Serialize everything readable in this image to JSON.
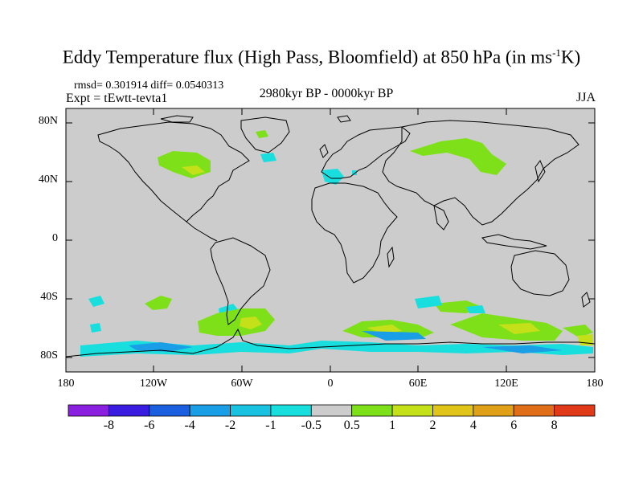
{
  "title_main": "Eddy Temperature flux (High Pass, Bloomfield) at 850 hPa (in ms",
  "title_sup": "-1",
  "title_end": "K)",
  "stats": "rmsd= 0.301914 diff= 0.0540313",
  "experiment": "Expt = tEwtt-tevta1",
  "period": "2980kyr BP - 0000kyr BP",
  "season": "JJA",
  "axes": {
    "y_labels": [
      "80N",
      "40N",
      "0",
      "40S",
      "80S"
    ],
    "x_labels": [
      "180",
      "120W",
      "60W",
      "0",
      "60E",
      "120E",
      "180"
    ]
  },
  "colorbar": {
    "labels": [
      "-8",
      "-6",
      "-4",
      "-2",
      "-1",
      "-0.5",
      "0.5",
      "1",
      "2",
      "4",
      "6",
      "8"
    ],
    "colors": [
      "#8b1fe0",
      "#3a1ce0",
      "#1a5fe0",
      "#1a9ee6",
      "#19c2e0",
      "#19dede",
      "#cccccc",
      "#7ee019",
      "#c4e019",
      "#e0c419",
      "#e0a119",
      "#e06e19",
      "#e03a19"
    ]
  },
  "colors": {
    "ocean_land_background": "#cccccc",
    "coastline": "#000000"
  }
}
